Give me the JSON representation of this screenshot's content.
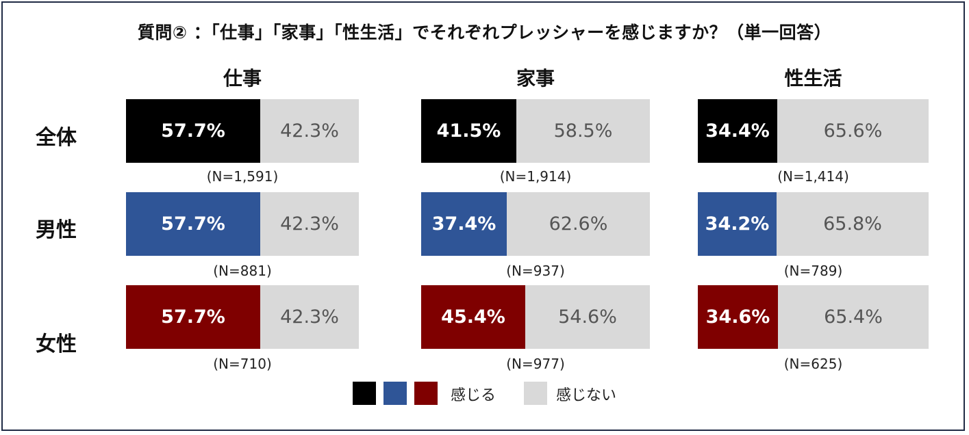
{
  "chart_data": {
    "type": "bar",
    "subtype": "100%-stacked-horizontal",
    "title": "質問② ：「仕事」「家事」「性生活」でそれぞれプレッシャーを感じますか？（単一回答）",
    "categories": [
      "仕事",
      "家事",
      "性生活"
    ],
    "rows": [
      "全体",
      "男性",
      "女性"
    ],
    "colors": {
      "全体": "#000000",
      "男性": "#2f5597",
      "女性": "#7f0000",
      "nofeel": "#d9d9d9"
    },
    "cells": [
      [
        {
          "feel": 57.7,
          "nofeel": 42.3,
          "feel_label": "57.7%",
          "nofeel_label": "42.3%",
          "n_label": "(N=1,591)"
        },
        {
          "feel": 41.5,
          "nofeel": 58.5,
          "feel_label": "41.5%",
          "nofeel_label": "58.5%",
          "n_label": "(N=1,914)"
        },
        {
          "feel": 34.4,
          "nofeel": 65.6,
          "feel_label": "34.4%",
          "nofeel_label": "65.6%",
          "n_label": "(N=1,414)"
        }
      ],
      [
        {
          "feel": 57.7,
          "nofeel": 42.3,
          "feel_label": "57.7%",
          "nofeel_label": "42.3%",
          "n_label": "(N=881)"
        },
        {
          "feel": 37.4,
          "nofeel": 62.6,
          "feel_label": "37.4%",
          "nofeel_label": "62.6%",
          "n_label": "(N=937)"
        },
        {
          "feel": 34.2,
          "nofeel": 65.8,
          "feel_label": "34.2%",
          "nofeel_label": "65.8%",
          "n_label": "(N=789)"
        }
      ],
      [
        {
          "feel": 57.7,
          "nofeel": 42.3,
          "feel_label": "57.7%",
          "nofeel_label": "42.3%",
          "n_label": "(N=710)"
        },
        {
          "feel": 45.4,
          "nofeel": 54.6,
          "feel_label": "45.4%",
          "nofeel_label": "54.6%",
          "n_label": "(N=977)"
        },
        {
          "feel": 34.6,
          "nofeel": 65.4,
          "feel_label": "34.6%",
          "nofeel_label": "65.4%",
          "n_label": "(N=625)"
        }
      ]
    ],
    "legend": {
      "feel_label": "感じる",
      "nofeel_label": "感じない"
    },
    "xlim": [
      0,
      100
    ]
  }
}
